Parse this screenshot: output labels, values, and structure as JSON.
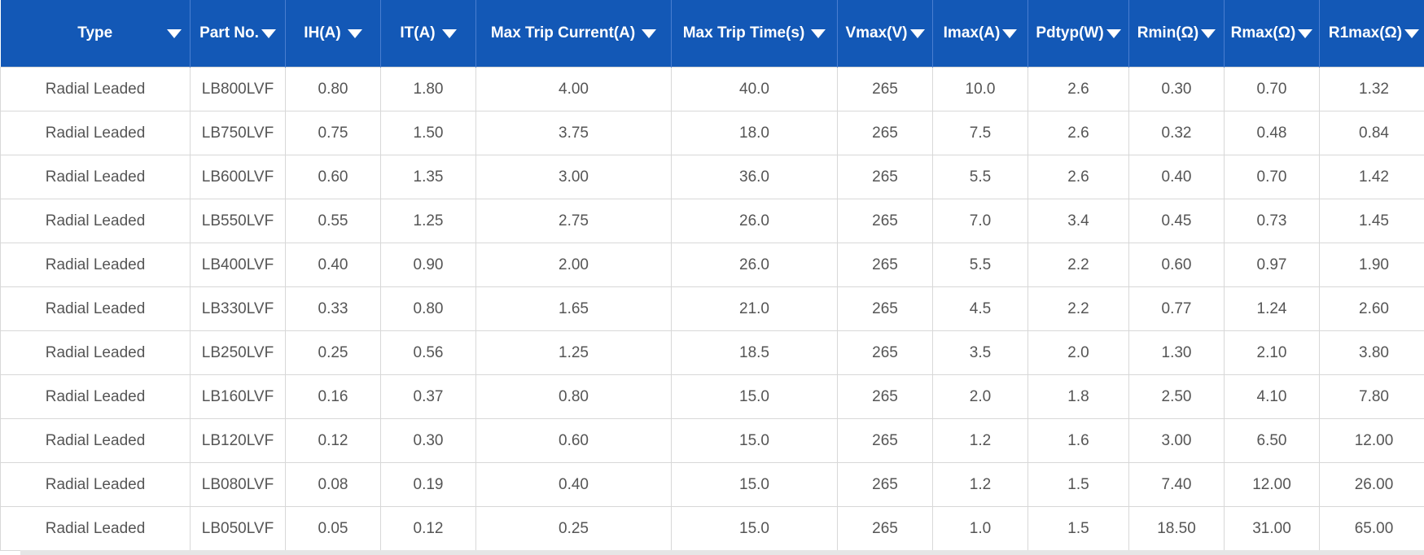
{
  "table": {
    "headers": [
      "Type",
      "Part No.",
      "IH(A)",
      "IT(A)",
      "Max Trip Current(A)",
      "Max Trip Time(s)",
      "Vmax(V)",
      "Imax(A)",
      "Pdtyp(W)",
      "Rmin(Ω)",
      "Rmax(Ω)",
      "R1max(Ω)"
    ],
    "rows": [
      [
        "Radial Leaded",
        "LB800LVF",
        "0.80",
        "1.80",
        "4.00",
        "40.0",
        "265",
        "10.0",
        "2.6",
        "0.30",
        "0.70",
        "1.32"
      ],
      [
        "Radial Leaded",
        "LB750LVF",
        "0.75",
        "1.50",
        "3.75",
        "18.0",
        "265",
        "7.5",
        "2.6",
        "0.32",
        "0.48",
        "0.84"
      ],
      [
        "Radial Leaded",
        "LB600LVF",
        "0.60",
        "1.35",
        "3.00",
        "36.0",
        "265",
        "5.5",
        "2.6",
        "0.40",
        "0.70",
        "1.42"
      ],
      [
        "Radial Leaded",
        "LB550LVF",
        "0.55",
        "1.25",
        "2.75",
        "26.0",
        "265",
        "7.0",
        "3.4",
        "0.45",
        "0.73",
        "1.45"
      ],
      [
        "Radial Leaded",
        "LB400LVF",
        "0.40",
        "0.90",
        "2.00",
        "26.0",
        "265",
        "5.5",
        "2.2",
        "0.60",
        "0.97",
        "1.90"
      ],
      [
        "Radial Leaded",
        "LB330LVF",
        "0.33",
        "0.80",
        "1.65",
        "21.0",
        "265",
        "4.5",
        "2.2",
        "0.77",
        "1.24",
        "2.60"
      ],
      [
        "Radial Leaded",
        "LB250LVF",
        "0.25",
        "0.56",
        "1.25",
        "18.5",
        "265",
        "3.5",
        "2.0",
        "1.30",
        "2.10",
        "3.80"
      ],
      [
        "Radial Leaded",
        "LB160LVF",
        "0.16",
        "0.37",
        "0.80",
        "15.0",
        "265",
        "2.0",
        "1.8",
        "2.50",
        "4.10",
        "7.80"
      ],
      [
        "Radial Leaded",
        "LB120LVF",
        "0.12",
        "0.30",
        "0.60",
        "15.0",
        "265",
        "1.2",
        "1.6",
        "3.00",
        "6.50",
        "12.00"
      ],
      [
        "Radial Leaded",
        "LB080LVF",
        "0.08",
        "0.19",
        "0.40",
        "15.0",
        "265",
        "1.2",
        "1.5",
        "7.40",
        "12.00",
        "26.00"
      ],
      [
        "Radial Leaded",
        "LB050LVF",
        "0.05",
        "0.12",
        "0.25",
        "15.0",
        "265",
        "1.0",
        "1.5",
        "18.50",
        "31.00",
        "65.00"
      ]
    ]
  },
  "colors": {
    "header_bg": "#1358b6",
    "header_text": "#ffffff",
    "cell_text": "#555555",
    "grid_line": "#d8d8d8"
  },
  "icons": {
    "sort": "sort-dropdown-icon"
  }
}
